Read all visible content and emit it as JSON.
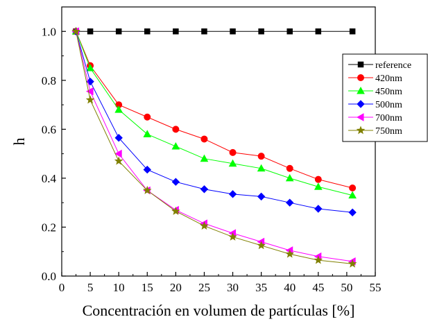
{
  "chart_data": {
    "type": "line",
    "title": "",
    "xlabel": "Concentración en volumen de partículas [%]",
    "ylabel": "h",
    "xlim": [
      0,
      55
    ],
    "ylim": [
      0.0,
      1.1
    ],
    "xticks": [
      0,
      5,
      10,
      15,
      20,
      25,
      30,
      35,
      40,
      45,
      50,
      55
    ],
    "yticks": [
      0.0,
      0.2,
      0.4,
      0.6,
      0.8,
      1.0
    ],
    "xtick_labels": [
      "0",
      "5",
      "10",
      "15",
      "20",
      "25",
      "30",
      "35",
      "40",
      "45",
      "50",
      "55"
    ],
    "ytick_labels": [
      "0.0",
      "0.2",
      "0.4",
      "0.6",
      "0.8",
      "1.0"
    ],
    "grid": false,
    "legend_position": "right",
    "series": [
      {
        "name": "reference",
        "color": "#000000",
        "marker": "square",
        "x": [
          2.5,
          5,
          10,
          15,
          20,
          25,
          30,
          35,
          40,
          45,
          51
        ],
        "y": [
          1.0,
          1.0,
          1.0,
          1.0,
          1.0,
          1.0,
          1.0,
          1.0,
          1.0,
          1.0,
          1.0
        ]
      },
      {
        "name": "420nm",
        "color": "#ff0000",
        "marker": "circle",
        "x": [
          2.5,
          5,
          10,
          15,
          20,
          25,
          30,
          35,
          40,
          45,
          51
        ],
        "y": [
          1.0,
          0.86,
          0.7,
          0.65,
          0.6,
          0.56,
          0.505,
          0.49,
          0.44,
          0.395,
          0.36
        ]
      },
      {
        "name": "450nm",
        "color": "#00ff00",
        "marker": "triangle-up",
        "x": [
          2.5,
          5,
          10,
          15,
          20,
          25,
          30,
          35,
          40,
          45,
          51
        ],
        "y": [
          1.0,
          0.85,
          0.68,
          0.58,
          0.53,
          0.48,
          0.46,
          0.44,
          0.4,
          0.365,
          0.33
        ]
      },
      {
        "name": "500nm",
        "color": "#0000ff",
        "marker": "diamond",
        "x": [
          2.5,
          5,
          10,
          15,
          20,
          25,
          30,
          35,
          40,
          45,
          51
        ],
        "y": [
          1.0,
          0.795,
          0.565,
          0.435,
          0.385,
          0.355,
          0.335,
          0.325,
          0.3,
          0.275,
          0.26
        ]
      },
      {
        "name": "700nm",
        "color": "#ff00ff",
        "marker": "triangle-left",
        "x": [
          2.5,
          5,
          10,
          15,
          20,
          25,
          30,
          35,
          40,
          45,
          51
        ],
        "y": [
          1.0,
          0.755,
          0.5,
          0.35,
          0.27,
          0.215,
          0.175,
          0.14,
          0.105,
          0.08,
          0.06
        ]
      },
      {
        "name": "750nm",
        "color": "#808000",
        "marker": "star",
        "x": [
          2.5,
          5,
          10,
          15,
          20,
          25,
          30,
          35,
          40,
          45,
          51
        ],
        "y": [
          1.0,
          0.72,
          0.47,
          0.35,
          0.265,
          0.205,
          0.16,
          0.125,
          0.09,
          0.065,
          0.05
        ]
      }
    ]
  }
}
